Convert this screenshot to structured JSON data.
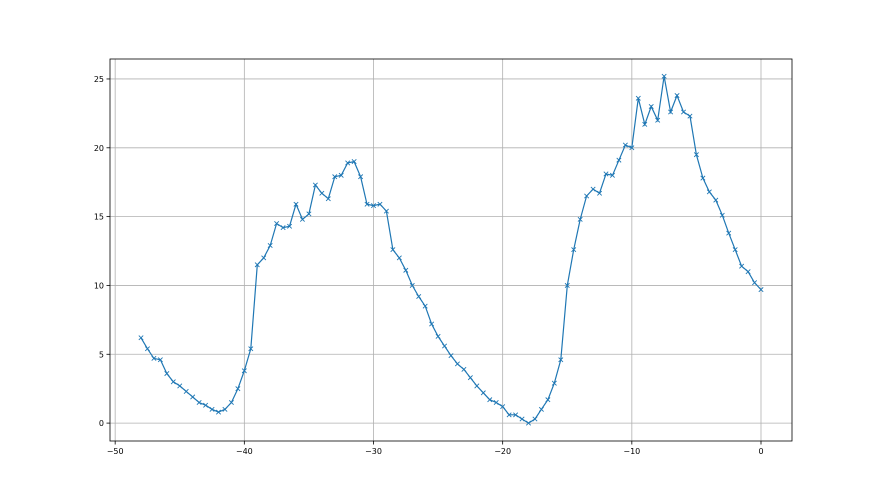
{
  "chart_data": {
    "type": "line",
    "title": "",
    "xlabel": "",
    "ylabel": "",
    "xlim": [
      -50.4,
      2.4
    ],
    "ylim": [
      -1.3,
      26.45
    ],
    "xticks": [
      -50,
      -40,
      -30,
      -20,
      -10,
      0
    ],
    "yticks": [
      0,
      5,
      10,
      15,
      20,
      25
    ],
    "grid": true,
    "marker": "x",
    "color": "#1f77b4",
    "series": [
      {
        "x": [
          -48,
          -47.5,
          -47,
          -46.5,
          -46,
          -45.5,
          -45,
          -44.5,
          -44,
          -43.5,
          -43,
          -42.5,
          -42,
          -41.5,
          -41,
          -40.5,
          -40,
          -39.5,
          -39,
          -38.5,
          -38,
          -37.5,
          -37,
          -36.5,
          -36,
          -35.5,
          -35,
          -34.5,
          -34,
          -33.5,
          -33,
          -32.5,
          -32,
          -31.5,
          -31,
          -30.5,
          -30,
          -29.5,
          -29,
          -28.5,
          -28,
          -27.5,
          -27,
          -26.5,
          -26,
          -25.5,
          -25,
          -24.5,
          -24,
          -23.5,
          -23,
          -22.5,
          -22,
          -21.5,
          -21,
          -20.5,
          -20,
          -19.5,
          -19,
          -18.5,
          -18,
          -17.5,
          -17,
          -16.5,
          -16,
          -15.5,
          -15,
          -14.5,
          -14,
          -13.5,
          -13,
          -12.5,
          -12,
          -11.5,
          -11,
          -10.5,
          -10,
          -9.5,
          -9,
          -8.5,
          -8,
          -7.5,
          -7,
          -6.5,
          -6,
          -5.5,
          -5,
          -4.5,
          -4,
          -3.5,
          -3,
          -2.5,
          -2,
          -1.5,
          -1,
          -0.5,
          0
        ],
        "y": [
          6.2,
          5.4,
          4.7,
          4.6,
          3.6,
          3.0,
          2.7,
          2.3,
          1.9,
          1.5,
          1.3,
          1.0,
          0.8,
          1.0,
          1.5,
          2.5,
          3.8,
          5.4,
          11.5,
          12.0,
          12.9,
          14.5,
          14.2,
          14.3,
          15.9,
          14.8,
          15.2,
          17.3,
          16.7,
          16.3,
          17.9,
          18.0,
          18.9,
          19.0,
          17.9,
          15.9,
          15.8,
          15.9,
          15.4,
          12.6,
          12.0,
          11.1,
          10.0,
          9.2,
          8.5,
          7.2,
          6.3,
          5.6,
          4.9,
          4.3,
          3.9,
          3.3,
          2.7,
          2.2,
          1.7,
          1.5,
          1.2,
          0.6,
          0.6,
          0.3,
          0.0,
          0.3,
          1.0,
          1.7,
          2.9,
          4.6,
          10.0,
          12.6,
          14.8,
          16.5,
          17.0,
          16.7,
          18.1,
          18.0,
          19.1,
          20.2,
          20.0,
          23.6,
          21.7,
          23.0,
          22.0,
          25.2,
          22.6,
          23.8,
          22.6,
          22.3,
          19.5,
          17.8,
          16.8,
          16.2,
          15.1,
          13.8,
          12.6,
          11.4,
          11.0,
          10.2,
          9.7
        ]
      }
    ]
  }
}
